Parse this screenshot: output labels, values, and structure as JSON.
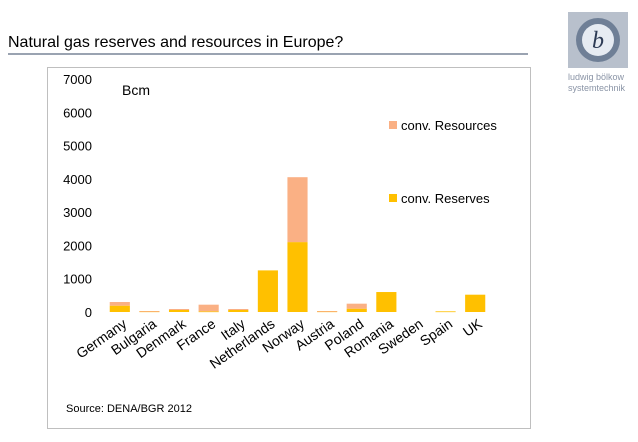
{
  "slide": {
    "title": "Natural gas reserves and resources in Europe?",
    "source": "Source: DENA/BGR 2012",
    "logo_text_line1": "ludwig bölkow",
    "logo_text_line2": "systemtechnik",
    "logo_letter": "b"
  },
  "colors": {
    "reserves": "#ffc000",
    "resources": "#fab084",
    "rule": "#9aa3b1",
    "logo": "#8a94a6"
  },
  "chart_data": {
    "type": "bar",
    "stacked": true,
    "unit_label": "Bcm",
    "categories": [
      "Germany",
      "Bulgaria",
      "Denmark",
      "France",
      "Italy",
      "Netherlands",
      "Norway",
      "Austria",
      "Poland",
      "Romania",
      "Sweden",
      "Spain",
      "UK"
    ],
    "series": [
      {
        "name": "conv. Reserves",
        "values": [
          190,
          20,
          60,
          20,
          60,
          1250,
          2100,
          20,
          100,
          600,
          0,
          20,
          520
        ]
      },
      {
        "name": "conv. Resources",
        "values": [
          110,
          10,
          30,
          200,
          30,
          0,
          1950,
          10,
          150,
          0,
          0,
          0,
          0
        ]
      }
    ],
    "ylim": [
      0,
      7000
    ],
    "yticks": [
      0,
      1000,
      2000,
      3000,
      4000,
      5000,
      6000,
      7000
    ],
    "grid": false,
    "legend_position": "right"
  }
}
